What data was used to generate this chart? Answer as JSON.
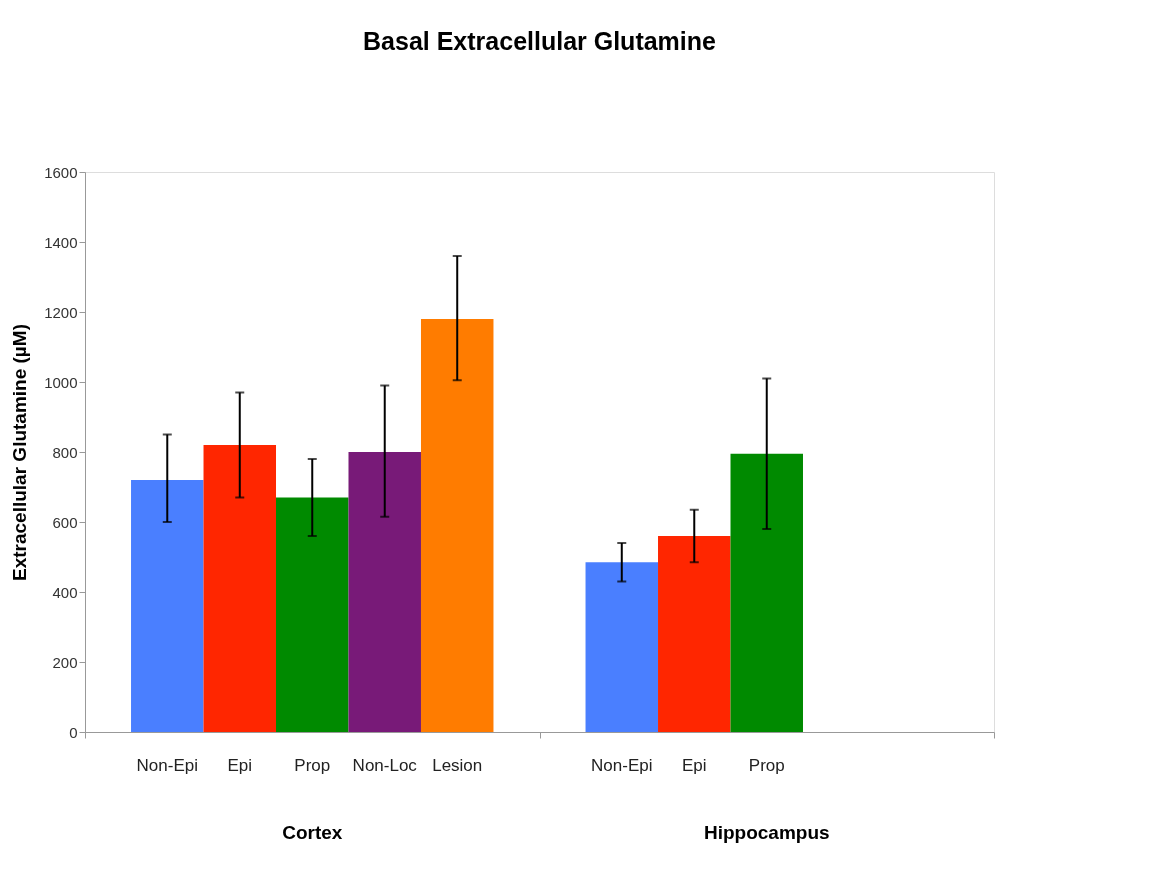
{
  "chart_data": {
    "type": "bar",
    "title": "Basal Extracellular Glutamine",
    "ylabel": "Extracellular Glutamine (µM)",
    "categories": [
      "Non-Epi",
      "Epi",
      "Prop",
      "Non-Loc",
      "Lesion",
      "Non-Epi",
      "Epi",
      "Prop",
      null,
      null
    ],
    "values": [
      720,
      820,
      670,
      800,
      1180,
      485,
      560,
      795,
      null,
      null
    ],
    "colors": [
      "#4a7fff",
      "#ff2600",
      "#008a00",
      "#781a78",
      "#ff7c00",
      "#4a7fff",
      "#ff2600",
      "#008a00",
      null,
      null
    ],
    "errors": [
      [
        600,
        850
      ],
      [
        670,
        970
      ],
      [
        560,
        780
      ],
      [
        615,
        990
      ],
      [
        1005,
        1360
      ],
      [
        430,
        540
      ],
      [
        485,
        635
      ],
      [
        580,
        1010
      ],
      null,
      null
    ],
    "annotations": [
      "Cortex",
      "Hippocampus"
    ],
    "ylim": [
      0,
      1600
    ],
    "yticks": [
      0,
      200,
      400,
      600,
      800,
      1000,
      1200,
      1400,
      1600
    ],
    "grid": false,
    "legend": false
  }
}
